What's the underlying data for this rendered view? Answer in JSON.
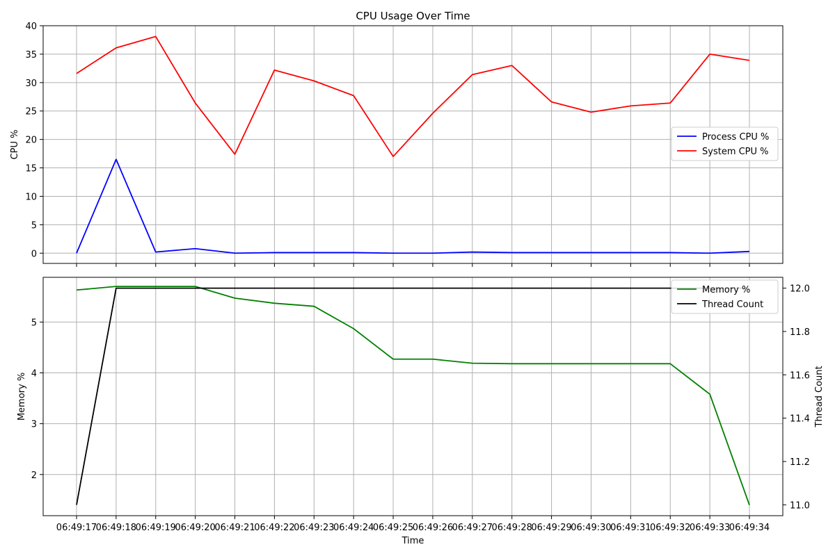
{
  "chart_data": [
    {
      "type": "line",
      "title": "CPU Usage Over Time",
      "xlabel": "",
      "ylabel": "CPU %",
      "ylim": [
        -1.8,
        40
      ],
      "yticks": [
        0,
        5,
        10,
        15,
        20,
        25,
        30,
        35,
        40
      ],
      "grid": true,
      "legend_position": "center-right",
      "categories": [
        "06:49:17",
        "06:49:18",
        "06:49:19",
        "06:49:20",
        "06:49:21",
        "06:49:22",
        "06:49:23",
        "06:49:24",
        "06:49:25",
        "06:49:26",
        "06:49:27",
        "06:49:28",
        "06:49:29",
        "06:49:30",
        "06:49:31",
        "06:49:32",
        "06:49:33",
        "06:49:34"
      ],
      "series": [
        {
          "name": "Process CPU %",
          "color": "#0000ff",
          "axis": "left",
          "values": [
            0.0,
            16.5,
            0.2,
            0.8,
            0.0,
            0.1,
            0.1,
            0.1,
            0.0,
            0.0,
            0.2,
            0.1,
            0.1,
            0.1,
            0.1,
            0.1,
            0.0,
            0.3
          ]
        },
        {
          "name": "System CPU %",
          "color": "#ff0000",
          "axis": "left",
          "values": [
            31.6,
            36.1,
            38.1,
            26.4,
            17.4,
            32.2,
            30.3,
            27.7,
            17.0,
            24.6,
            31.4,
            33.0,
            26.6,
            24.8,
            25.9,
            26.4,
            35.0,
            33.9
          ]
        }
      ]
    },
    {
      "type": "line",
      "title": "",
      "xlabel": "Time",
      "ylabel": "Memory %",
      "ylabel_right": "Thread Count",
      "ylim": [
        1.19,
        5.88
      ],
      "ylim_right": [
        10.95,
        12.05
      ],
      "yticks": [
        2,
        3,
        4,
        5
      ],
      "yticks_right": [
        "11.0",
        "11.2",
        "11.4",
        "11.6",
        "11.8",
        "12.0"
      ],
      "grid": true,
      "legend_position": "top-right",
      "categories": [
        "06:49:17",
        "06:49:18",
        "06:49:19",
        "06:49:20",
        "06:49:21",
        "06:49:22",
        "06:49:23",
        "06:49:24",
        "06:49:25",
        "06:49:26",
        "06:49:27",
        "06:49:28",
        "06:49:29",
        "06:49:30",
        "06:49:31",
        "06:49:32",
        "06:49:33",
        "06:49:34"
      ],
      "series": [
        {
          "name": "Memory %",
          "color": "#008000",
          "axis": "left",
          "values": [
            5.63,
            5.7,
            5.7,
            5.7,
            5.47,
            5.37,
            5.31,
            4.87,
            4.27,
            4.27,
            4.19,
            4.18,
            4.18,
            4.18,
            4.18,
            4.18,
            3.58,
            1.4
          ]
        },
        {
          "name": "Thread Count",
          "color": "#000000",
          "axis": "right",
          "values": [
            11,
            12,
            12,
            12,
            12,
            12,
            12,
            12,
            12,
            12,
            12,
            12,
            12,
            12,
            12,
            12,
            12,
            12
          ]
        }
      ]
    }
  ]
}
